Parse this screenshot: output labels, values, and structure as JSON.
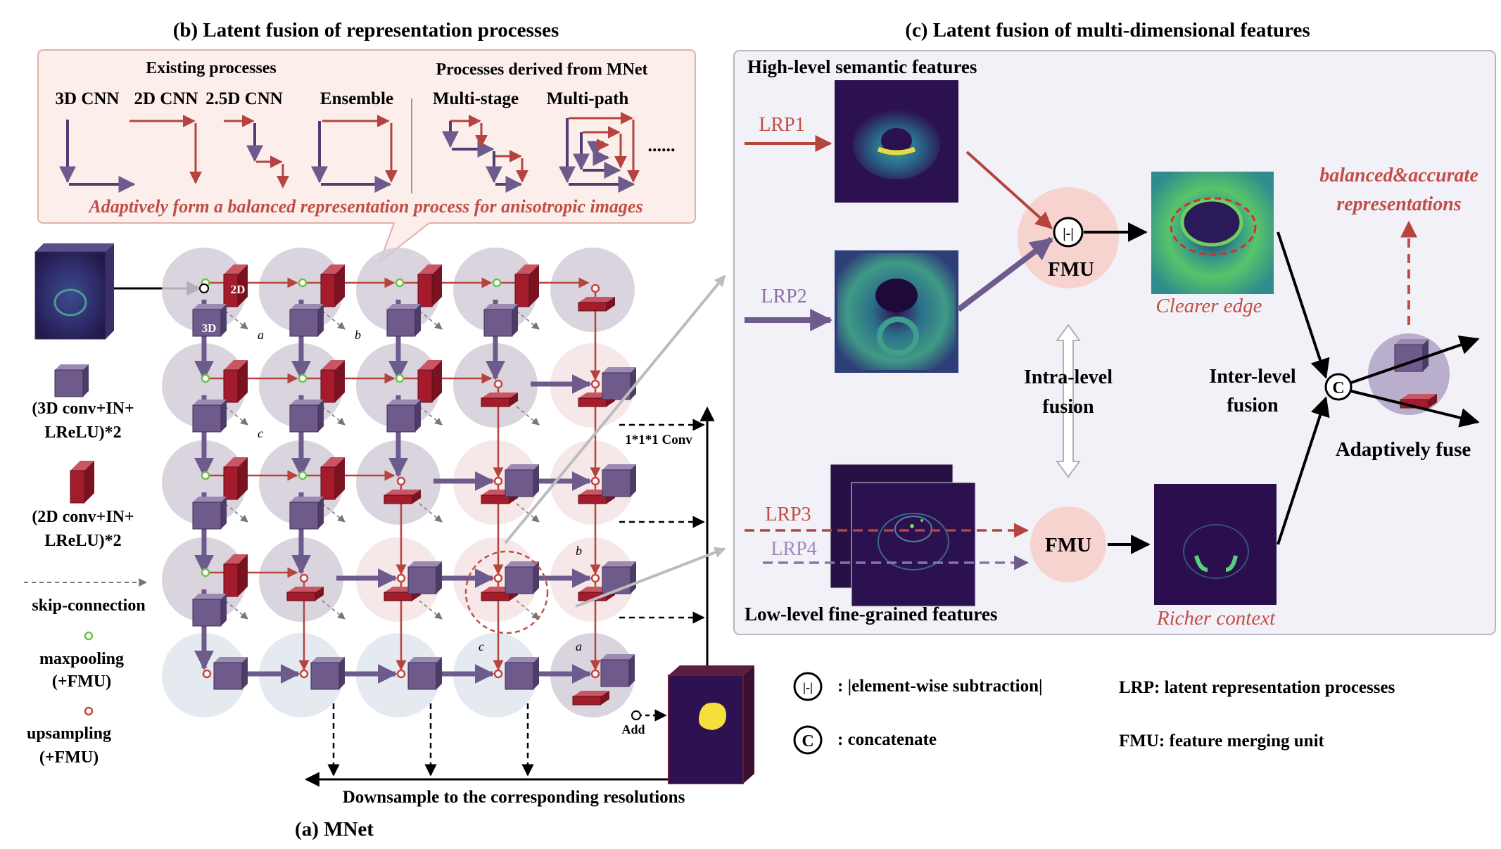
{
  "panel_b": {
    "title": "(b) Latent fusion of representation processes",
    "existing_header": "Existing processes",
    "derived_header": "Processes derived from MNet",
    "labels": [
      "3D CNN",
      "2D CNN",
      "2.5D CNN",
      "Ensemble",
      "Multi-stage",
      "Multi-path"
    ],
    "ellipsis": "......",
    "caption": "Adaptively form a balanced representation process for anisotropic images"
  },
  "panel_a": {
    "title": "(a) MNet",
    "node_2d": "2D",
    "node_3d": "3D",
    "skip_a": "a",
    "skip_b": "b",
    "skip_c": "c",
    "conv_label": "1*1*1 Conv",
    "add_label": "Add",
    "downsample_label": "Downsample to the corresponding resolutions",
    "legend": {
      "conv3d_line1": "(3D conv+IN+",
      "conv3d_line2": "LReLU)*2",
      "conv2d_line1": "(2D conv+IN+",
      "conv2d_line2": "LReLU)*2",
      "skip": "skip-connection",
      "maxpool_line1": "maxpooling",
      "maxpool_line2": "(+FMU)",
      "upsample_line1": "upsampling",
      "upsample_line2": "(+FMU)"
    }
  },
  "panel_c": {
    "title": "(c) Latent fusion of multi-dimensional features",
    "high_level": "High-level semantic features",
    "low_level": "Low-level fine-grained features",
    "lrp1": "LRP1",
    "lrp2": "LRP2",
    "lrp3": "LRP3",
    "lrp4": "LRP4",
    "fmu": "FMU",
    "clearer_edge": "Clearer edge",
    "richer_context": "Richer context",
    "intra_line1": "Intra-level",
    "intra_line2": "fusion",
    "inter_line1": "Inter-level",
    "inter_line2": "fusion",
    "adaptively_fuse": "Adaptively fuse",
    "balanced_line1": "balanced&accurate",
    "balanced_line2": "representations",
    "concat_symbol": "C",
    "subtract_symbol": "|-|"
  },
  "bottom_legend": {
    "subtraction": ": |element-wise subtraction|",
    "concatenate": ": concatenate",
    "lrp": "LRP:  latent representation processes",
    "fmu": "FMU: feature merging unit"
  },
  "colors": {
    "conv3d": "#6f5a8c",
    "conv2d": "#a41c2c",
    "arrow_red": "#b5443f",
    "arrow_purple": "#6e5b8d",
    "node_circle": "#d3cad7",
    "pink_circle": "#f6d3cf",
    "panel_b_bg": "#fbeeeb",
    "panel_c_bg": "#f3f1f8",
    "red_text": "#c24d46",
    "feature_dark": "#2d1151"
  }
}
